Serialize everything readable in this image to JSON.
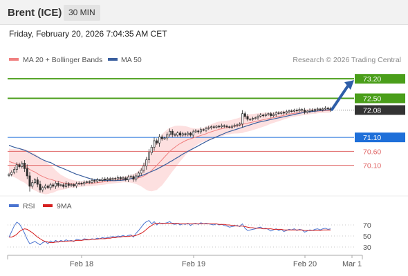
{
  "header": {
    "instrument": "Brent (ICE)",
    "interval": "30 MIN"
  },
  "datetime": "Friday, February 20, 2026 7:04:35 AM CET",
  "legend": {
    "items": [
      {
        "label": "MA 20 + Bollinger Bands",
        "color": "#f08080"
      },
      {
        "label": "MA 50",
        "color": "#3a5f9e"
      }
    ],
    "credit": "Research © 2026 Trading Central"
  },
  "colors": {
    "support_resistance_green": "#4a9e1a",
    "pivot_blue": "#1e6fd9",
    "support_red": "#e06666",
    "current_price_box": "#333333",
    "arrow": "#2e5ea8",
    "candle": "#2d2d2d",
    "bollinger_fill": "#fde0e0",
    "rsi_line": "#4a74d0",
    "rsi_ma_line": "#d62020"
  },
  "chart_data": [
    {
      "type": "candlestick",
      "price_range": [
        69.15,
        73.6
      ],
      "x_labels": [
        "Feb 18",
        "Feb 19",
        "Feb 20",
        "Mar 1"
      ],
      "levels": [
        {
          "label": "73.20",
          "value": 73.2,
          "kind": "resistance"
        },
        {
          "label": "72.50",
          "value": 72.5,
          "kind": "resistance"
        },
        {
          "label": "72.08",
          "value": 72.08,
          "kind": "last"
        },
        {
          "label": "71.10",
          "value": 71.1,
          "kind": "pivot"
        },
        {
          "label": "70.60",
          "value": 70.6,
          "kind": "support"
        },
        {
          "label": "70.10",
          "value": 70.1,
          "kind": "support"
        }
      ],
      "closes": [
        69.78,
        69.85,
        69.95,
        70.12,
        70.05,
        70.18,
        69.98,
        69.72,
        69.35,
        69.48,
        69.58,
        69.42,
        69.22,
        69.3,
        69.36,
        69.3,
        69.4,
        69.35,
        69.46,
        69.38,
        69.4,
        69.34,
        69.44,
        69.38,
        69.41,
        69.36,
        69.44,
        69.46,
        69.43,
        69.49,
        69.51,
        69.49,
        69.56,
        69.53,
        69.58,
        69.56,
        69.61,
        69.58,
        69.62,
        69.59,
        69.63,
        69.61,
        69.66,
        69.62,
        69.65,
        69.58,
        69.68,
        69.7,
        69.6,
        69.72,
        69.82,
        69.92,
        70.08,
        70.3,
        70.55,
        70.75,
        70.98,
        70.9,
        71.12,
        71.05,
        71.08,
        71.2,
        71.32,
        71.2,
        71.18,
        71.26,
        71.18,
        71.23,
        71.2,
        71.25,
        71.18,
        71.3,
        71.33,
        71.3,
        71.38,
        71.36,
        71.42,
        71.45,
        71.48,
        71.46,
        71.5,
        71.48,
        71.52,
        71.5,
        71.48,
        71.46,
        71.5,
        71.53,
        71.55,
        71.58,
        71.95,
        71.85,
        71.75,
        71.75,
        71.78,
        71.8,
        71.86,
        71.9,
        71.88,
        71.92,
        71.95,
        71.88,
        71.92,
        71.98,
        71.96,
        72.0,
        71.97,
        72.02,
        72.05,
        72.04,
        72.08,
        72.05,
        72.1,
        72.08,
        72.0,
        72.04,
        72.08,
        72.06,
        72.1,
        72.12,
        72.09,
        72.12,
        72.15,
        72.13,
        72.08
      ],
      "ma50": [
        70.82,
        70.78,
        70.75,
        70.72,
        70.7,
        70.67,
        70.64,
        70.6,
        70.55,
        70.5,
        70.45,
        70.4,
        70.35,
        70.3,
        70.26,
        70.22,
        70.2,
        70.15,
        70.1,
        70.05,
        70.02,
        69.98,
        69.94,
        69.9,
        69.86,
        69.82,
        69.78,
        69.75,
        69.72,
        69.69,
        69.66,
        69.63,
        69.6,
        69.59,
        69.58,
        69.57,
        69.56,
        69.56,
        69.56,
        69.56,
        69.55,
        69.55,
        69.56,
        69.56,
        69.57,
        69.58,
        69.6,
        69.62,
        69.64,
        69.67,
        69.7,
        69.73,
        69.76,
        69.8,
        69.84,
        69.88,
        69.92,
        69.96,
        70.01,
        70.06,
        70.11,
        70.16,
        70.22,
        70.27,
        70.33,
        70.38,
        70.44,
        70.5,
        70.55,
        70.6,
        70.65,
        70.7,
        70.75,
        70.8,
        70.85,
        70.9,
        70.95,
        71.0,
        71.04,
        71.08,
        71.12,
        71.16,
        71.2,
        71.24,
        71.28,
        71.31,
        71.34,
        71.37,
        71.4,
        71.43,
        71.46,
        71.49,
        71.52,
        71.55,
        71.58,
        71.61,
        71.64,
        71.66,
        71.68,
        71.7,
        71.72,
        71.74,
        71.76,
        71.78,
        71.8,
        71.82,
        71.84,
        71.86,
        71.88,
        71.9,
        71.92,
        71.94,
        71.96,
        71.98,
        72.0,
        72.01,
        72.02,
        72.03,
        72.04,
        72.05,
        72.06,
        72.07,
        72.08,
        72.09,
        72.1
      ],
      "ma20": [
        70.25,
        70.2,
        70.18,
        70.15,
        70.12,
        70.1,
        70.08,
        70.02,
        69.95,
        69.9,
        69.86,
        69.8,
        69.74,
        69.7,
        69.66,
        69.62,
        69.6,
        69.57,
        69.54,
        69.52,
        69.49,
        69.47,
        69.46,
        69.45,
        69.44,
        69.43,
        69.43,
        69.43,
        69.43,
        69.44,
        69.45,
        69.45,
        69.46,
        69.47,
        69.48,
        69.49,
        69.5,
        69.51,
        69.53,
        69.54,
        69.55,
        69.56,
        69.57,
        69.58,
        69.59,
        69.6,
        69.61,
        69.62,
        69.62,
        69.63,
        69.65,
        69.68,
        69.72,
        69.77,
        69.84,
        69.92,
        70.01,
        70.1,
        70.2,
        70.3,
        70.4,
        70.5,
        70.6,
        70.68,
        70.75,
        70.82,
        70.88,
        70.93,
        70.98,
        71.02,
        71.05,
        71.08,
        71.11,
        71.14,
        71.17,
        71.2,
        71.23,
        71.27,
        71.3,
        71.33,
        71.36,
        71.39,
        71.41,
        71.43,
        71.45,
        71.46,
        71.48,
        71.5,
        71.51,
        71.53,
        71.56,
        71.59,
        71.61,
        71.63,
        71.65,
        71.67,
        71.69,
        71.71,
        71.73,
        71.75,
        71.77,
        71.79,
        71.81,
        71.83,
        71.85,
        71.87,
        71.89,
        71.91,
        71.93,
        71.95,
        71.96,
        71.97,
        71.98,
        71.99,
        72.0,
        72.01,
        72.02,
        72.03,
        72.03,
        72.04,
        72.05,
        72.05,
        72.06,
        72.06,
        72.07
      ],
      "bb_half_width": [
        0.45,
        0.48,
        0.5,
        0.52,
        0.55,
        0.58,
        0.6,
        0.62,
        0.65,
        0.66,
        0.66,
        0.65,
        0.64,
        0.62,
        0.6,
        0.55,
        0.5,
        0.45,
        0.38,
        0.32,
        0.27,
        0.24,
        0.2,
        0.17,
        0.15,
        0.13,
        0.12,
        0.1,
        0.1,
        0.1,
        0.1,
        0.1,
        0.1,
        0.1,
        0.1,
        0.1,
        0.1,
        0.1,
        0.1,
        0.1,
        0.1,
        0.1,
        0.1,
        0.1,
        0.1,
        0.11,
        0.12,
        0.14,
        0.16,
        0.2,
        0.26,
        0.34,
        0.44,
        0.55,
        0.66,
        0.75,
        0.82,
        0.88,
        0.9,
        0.92,
        0.9,
        0.88,
        0.85,
        0.8,
        0.76,
        0.7,
        0.64,
        0.58,
        0.52,
        0.46,
        0.4,
        0.35,
        0.31,
        0.28,
        0.26,
        0.25,
        0.25,
        0.26,
        0.27,
        0.28,
        0.28,
        0.28,
        0.27,
        0.26,
        0.25,
        0.25,
        0.25,
        0.26,
        0.27,
        0.28,
        0.3,
        0.3,
        0.3,
        0.3,
        0.29,
        0.28,
        0.27,
        0.26,
        0.25,
        0.24,
        0.22,
        0.2,
        0.19,
        0.18,
        0.17,
        0.16,
        0.15,
        0.14,
        0.13,
        0.12,
        0.12,
        0.11,
        0.11,
        0.1,
        0.1,
        0.1,
        0.09,
        0.09,
        0.09,
        0.08,
        0.08,
        0.08,
        0.08,
        0.08,
        0.08
      ],
      "projection_arrow": {
        "from": 72.05,
        "to": 73.2
      }
    },
    {
      "type": "line",
      "legend": [
        "RSI",
        "9MA"
      ],
      "y_ticks": [
        70,
        50,
        30
      ],
      "y_range": [
        20,
        80
      ],
      "rsi": [
        48,
        58,
        68,
        75,
        72,
        64,
        55,
        44,
        36,
        38,
        40,
        37,
        34,
        38,
        40,
        36,
        41,
        38,
        42,
        39,
        42,
        40,
        43,
        41,
        42,
        40,
        44,
        43,
        42,
        45,
        44,
        43,
        45,
        44,
        46,
        45,
        47,
        46,
        47,
        48,
        49,
        48,
        50,
        49,
        51,
        49,
        51,
        52,
        48,
        55,
        60,
        66,
        72,
        76,
        78,
        72,
        76,
        70,
        74,
        72,
        73,
        74,
        76,
        72,
        71,
        73,
        70,
        72,
        71,
        73,
        69,
        72,
        73,
        71,
        74,
        72,
        73,
        72,
        71,
        70,
        72,
        70,
        71,
        69,
        68,
        66,
        67,
        68,
        69,
        67,
        72,
        64,
        60,
        61,
        62,
        63,
        65,
        66,
        63,
        64,
        62,
        59,
        61,
        63,
        60,
        62,
        58,
        60,
        62,
        61,
        63,
        60,
        62,
        61,
        57,
        59,
        61,
        60,
        62,
        63,
        61,
        63,
        64,
        62,
        63
      ],
      "rsi_ma": [
        48,
        48,
        50,
        53,
        58,
        61,
        63,
        62,
        59,
        56,
        52,
        48,
        45,
        42,
        40,
        39,
        38,
        38,
        39,
        39,
        40,
        40,
        40,
        41,
        41,
        41,
        42,
        42,
        42,
        43,
        43,
        43,
        44,
        44,
        44,
        45,
        45,
        45,
        46,
        46,
        47,
        47,
        48,
        48,
        49,
        49,
        49,
        50,
        50,
        51,
        53,
        55,
        58,
        62,
        66,
        69,
        72,
        73,
        73,
        73,
        73,
        73,
        73,
        73,
        73,
        73,
        72,
        72,
        72,
        72,
        72,
        72,
        72,
        72,
        72,
        72,
        72,
        72,
        72,
        72,
        72,
        71,
        71,
        71,
        70,
        70,
        69,
        69,
        68,
        68,
        68,
        67,
        66,
        65,
        65,
        64,
        64,
        64,
        63,
        63,
        63,
        63,
        62,
        62,
        62,
        62,
        61,
        61,
        61,
        61,
        61,
        61,
        61,
        61,
        60,
        60,
        60,
        60,
        60,
        60,
        60,
        61,
        61,
        61,
        61
      ]
    }
  ]
}
